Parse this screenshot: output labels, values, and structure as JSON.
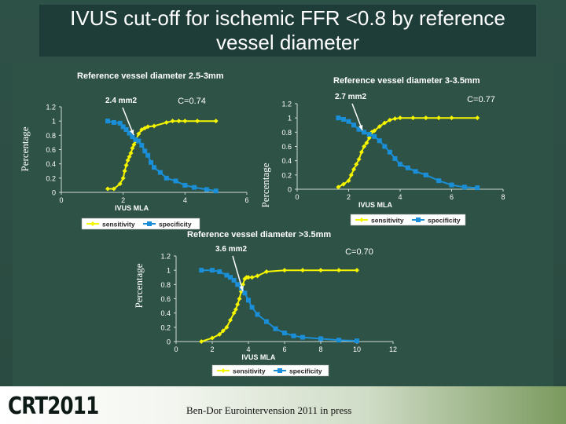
{
  "title": "IVUS cut-off for ischemic FFR <0.8 by reference vessel diameter",
  "footer": {
    "logo": "CRT2011",
    "citation": "Ben-Dor Eurointervension 2011 in press"
  },
  "colors": {
    "sensitivity": "#f5f500",
    "specificity": "#1a8fd8",
    "background": "#2e5246"
  },
  "chart_data": [
    {
      "type": "line",
      "title": "Reference vessel diameter 2.5-3mm",
      "ylabel": "Percentage",
      "xlabel": "IVUS MLA",
      "xlim": [
        0,
        6
      ],
      "ylim": [
        0,
        1.2
      ],
      "xticks": [
        0,
        2,
        4,
        6
      ],
      "xtick_labels": [
        "0",
        "2",
        "4",
        "6"
      ],
      "yticks": [
        0,
        0.2,
        0.4,
        0.6,
        0.8,
        1,
        1.2
      ],
      "ytick_labels": [
        "0",
        "0.2",
        "0.4",
        "0.6",
        "0.8",
        "1",
        "1.2"
      ],
      "cutoff_label": "2.4 mm2",
      "cutoff_x": 2.4,
      "cutoff_y": 0.72,
      "c_stat": "C=0.74",
      "legend": [
        "sensitivity",
        "specificity"
      ],
      "series": [
        {
          "name": "sensitivity",
          "x": [
            1.5,
            1.7,
            1.9,
            2.0,
            2.05,
            2.1,
            2.15,
            2.2,
            2.25,
            2.3,
            2.35,
            2.4,
            2.5,
            2.6,
            2.7,
            2.8,
            3.0,
            3.4,
            3.6,
            3.8,
            4.0,
            4.4,
            5.0
          ],
          "y": [
            0.05,
            0.05,
            0.12,
            0.2,
            0.3,
            0.38,
            0.45,
            0.5,
            0.55,
            0.62,
            0.67,
            0.72,
            0.82,
            0.88,
            0.9,
            0.92,
            0.93,
            0.98,
            1,
            1,
            1,
            1,
            1
          ]
        },
        {
          "name": "specificity",
          "x": [
            1.5,
            1.7,
            1.9,
            2.0,
            2.1,
            2.2,
            2.3,
            2.4,
            2.5,
            2.6,
            2.7,
            2.8,
            2.9,
            3.0,
            3.2,
            3.4,
            3.7,
            4.0,
            4.3,
            4.7,
            5.0
          ],
          "y": [
            1.0,
            0.98,
            0.97,
            0.92,
            0.88,
            0.83,
            0.78,
            0.74,
            0.72,
            0.66,
            0.58,
            0.52,
            0.42,
            0.35,
            0.28,
            0.2,
            0.16,
            0.1,
            0.07,
            0.04,
            0.02
          ]
        }
      ]
    },
    {
      "type": "line",
      "title": "Reference vessel diameter 3-3.5mm",
      "ylabel": "Percentage",
      "xlabel": "IVUS MLA",
      "xlim": [
        0,
        8
      ],
      "ylim": [
        0,
        1.2
      ],
      "xticks": [
        0,
        2,
        4,
        6,
        8
      ],
      "xtick_labels": [
        "0",
        "2",
        "4",
        "6",
        "8"
      ],
      "yticks": [
        0,
        0.2,
        0.4,
        0.6,
        0.8,
        1,
        1.2
      ],
      "ytick_labels": [
        "0",
        "0.2",
        "0.4",
        "0.6",
        "0.8",
        "1",
        "1.2"
      ],
      "cutoff_label": "2.7 mm2",
      "cutoff_x": 2.7,
      "cutoff_y": 0.72,
      "c_stat": "C=0.77",
      "legend": [
        "sensitivity",
        "specificity"
      ],
      "series": [
        {
          "name": "sensitivity",
          "x": [
            1.6,
            1.8,
            2.0,
            2.1,
            2.2,
            2.3,
            2.4,
            2.5,
            2.6,
            2.7,
            2.8,
            2.9,
            3.0,
            3.2,
            3.4,
            3.6,
            3.8,
            4.0,
            4.5,
            5.0,
            5.5,
            6.0,
            7.0
          ],
          "y": [
            0.03,
            0.07,
            0.12,
            0.2,
            0.28,
            0.35,
            0.42,
            0.52,
            0.6,
            0.65,
            0.72,
            0.8,
            0.82,
            0.88,
            0.93,
            0.97,
            0.99,
            1,
            1,
            1,
            1,
            1,
            1
          ]
        },
        {
          "name": "specificity",
          "x": [
            1.6,
            1.8,
            2.0,
            2.2,
            2.4,
            2.6,
            2.8,
            3.0,
            3.2,
            3.4,
            3.6,
            3.8,
            4.0,
            4.3,
            4.6,
            5.0,
            5.5,
            6.0,
            6.5,
            7.0
          ],
          "y": [
            1.0,
            0.98,
            0.95,
            0.9,
            0.84,
            0.8,
            0.77,
            0.74,
            0.68,
            0.6,
            0.52,
            0.43,
            0.35,
            0.3,
            0.25,
            0.2,
            0.12,
            0.06,
            0.03,
            0.02
          ]
        }
      ]
    },
    {
      "type": "line",
      "title": "Reference vessel diameter >3.5mm",
      "ylabel": "Percentage",
      "xlabel": "IVUS MLA",
      "xlim": [
        0,
        12
      ],
      "ylim": [
        0,
        1.2
      ],
      "xticks": [
        0,
        2,
        4,
        6,
        8,
        10,
        12
      ],
      "xtick_labels": [
        "0",
        "2",
        "4",
        "6",
        "8",
        "10",
        "12"
      ],
      "yticks": [
        0,
        0.2,
        0.4,
        0.6,
        0.8,
        1,
        1.2
      ],
      "ytick_labels": [
        "0",
        "0.2",
        "0.4",
        "0.6",
        "0.8",
        "1",
        "1.2"
      ],
      "cutoff_label": "3.6 mm2",
      "cutoff_x": 3.6,
      "cutoff_y": 0.72,
      "c_stat": "C=0.70",
      "legend": [
        "sensitivity",
        "specificity"
      ],
      "series": [
        {
          "name": "sensitivity",
          "x": [
            1.4,
            2.0,
            2.4,
            2.6,
            2.8,
            3.0,
            3.2,
            3.3,
            3.4,
            3.5,
            3.6,
            3.7,
            3.8,
            3.9,
            4.0,
            4.2,
            4.5,
            5.0,
            6.0,
            7.0,
            8.0,
            9.0,
            10.0
          ],
          "y": [
            0.0,
            0.05,
            0.1,
            0.15,
            0.2,
            0.3,
            0.4,
            0.45,
            0.52,
            0.6,
            0.7,
            0.8,
            0.88,
            0.9,
            0.9,
            0.9,
            0.92,
            0.98,
            1,
            1,
            1,
            1,
            1
          ]
        },
        {
          "name": "specificity",
          "x": [
            1.4,
            2.0,
            2.4,
            2.8,
            3.0,
            3.2,
            3.4,
            3.6,
            3.8,
            4.0,
            4.2,
            4.5,
            5.0,
            5.5,
            6.0,
            6.5,
            7.0,
            8.0,
            9.0,
            10.0
          ],
          "y": [
            1.0,
            1.0,
            0.98,
            0.93,
            0.9,
            0.86,
            0.8,
            0.75,
            0.68,
            0.58,
            0.48,
            0.38,
            0.28,
            0.18,
            0.12,
            0.08,
            0.06,
            0.04,
            0.02,
            0.01
          ]
        }
      ]
    }
  ]
}
